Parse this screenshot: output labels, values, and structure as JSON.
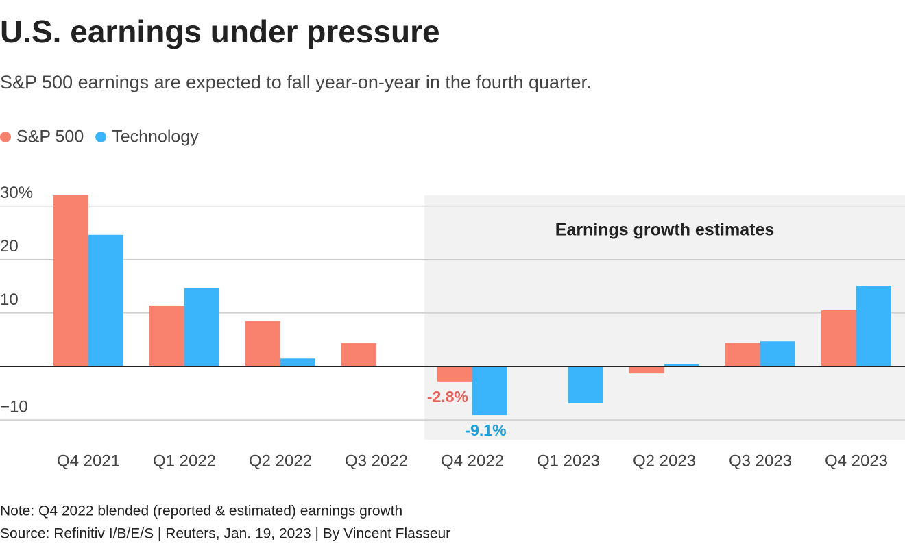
{
  "chart_data": {
    "type": "bar",
    "title": "U.S. earnings under pressure",
    "subtitle": "S&P 500 earnings are expected to fall year-on-year in the fourth quarter.",
    "categories": [
      "Q4 2021",
      "Q1 2022",
      "Q2 2022",
      "Q3 2022",
      "Q4 2022",
      "Q1 2023",
      "Q2 2023",
      "Q3 2023",
      "Q4 2023"
    ],
    "series": [
      {
        "name": "S&P 500",
        "color": "#f9826f",
        "label_color": "#e8625a",
        "values": [
          32.0,
          11.4,
          8.5,
          4.4,
          -2.8,
          null,
          -1.3,
          4.4,
          10.5
        ],
        "value_labels": [
          null,
          null,
          null,
          null,
          "-2.8%",
          null,
          null,
          null,
          null
        ]
      },
      {
        "name": "Technology",
        "color": "#3ab4fb",
        "label_color": "#1a9fe0",
        "values": [
          24.6,
          14.6,
          1.5,
          null,
          -9.1,
          -6.9,
          0.4,
          4.7,
          15.1
        ],
        "value_labels": [
          null,
          null,
          null,
          null,
          "-9.1%",
          null,
          null,
          null,
          null
        ]
      }
    ],
    "ylim": [
      -13.7,
      32
    ],
    "yticks": [
      {
        "value": 30,
        "label": "30%"
      },
      20,
      10,
      {
        "value": -10,
        "label": "−10"
      }
    ],
    "grid": true,
    "legend": "top-left",
    "annotation": {
      "text": "Earnings growth estimates",
      "from": "Q4 2022",
      "to": "Q4 2023"
    },
    "note": "Note: Q4 2022 blended (reported & estimated) earnings growth",
    "source": "Source: Refinitiv I/B/E/S | Reuters, Jan. 19, 2023 | By Vincent Flasseur"
  }
}
